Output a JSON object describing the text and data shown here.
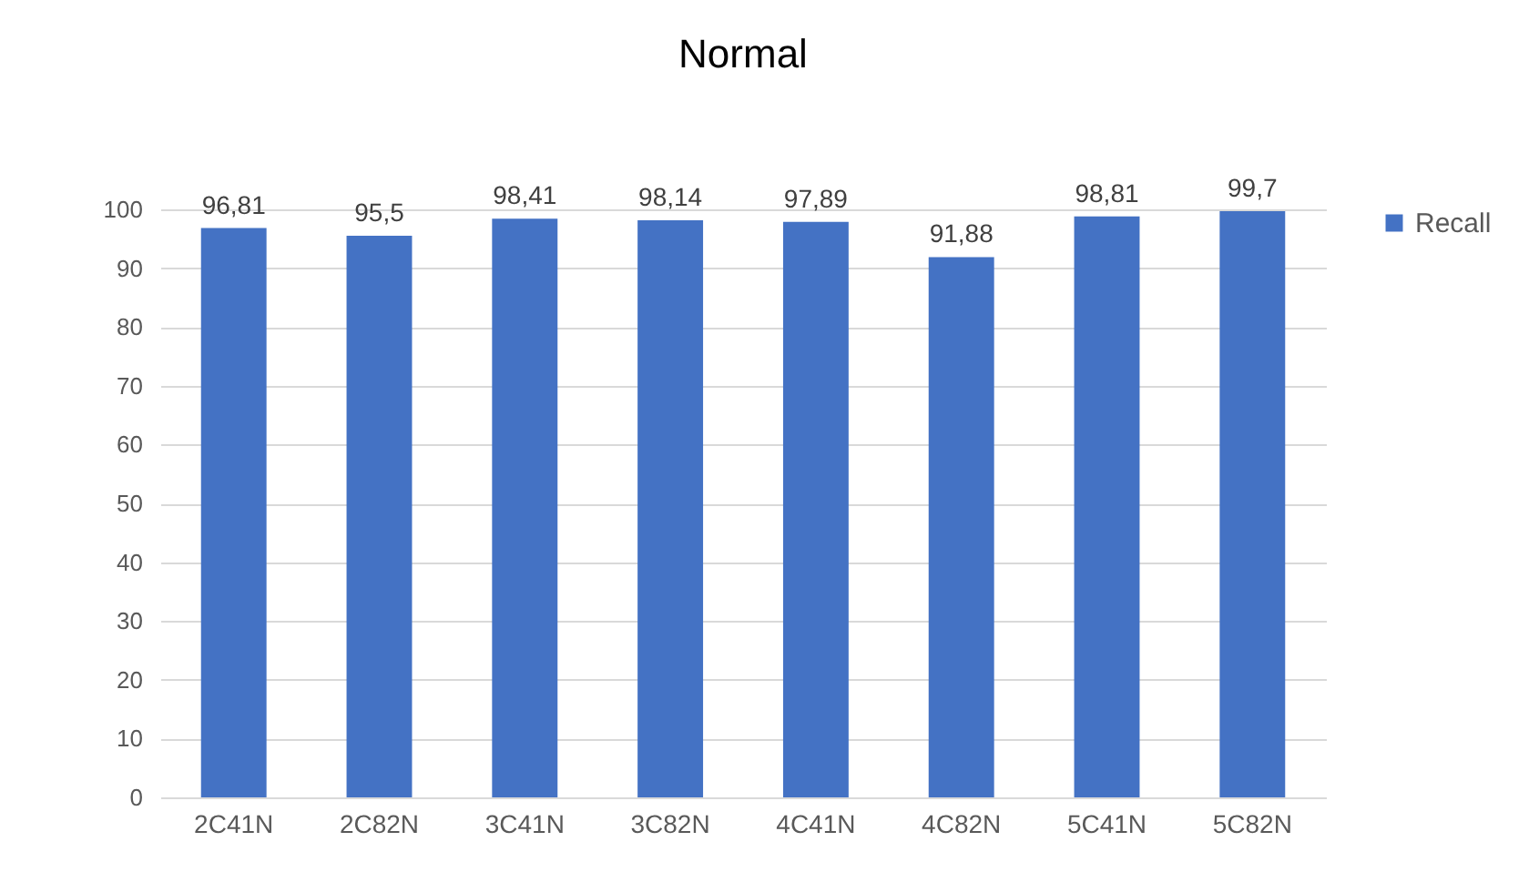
{
  "chart_data": {
    "type": "bar",
    "title": "Normal",
    "categories": [
      "2C41N",
      "2C82N",
      "3C41N",
      "3C82N",
      "4C41N",
      "4C82N",
      "5C41N",
      "5C82N"
    ],
    "series": [
      {
        "name": "Recall",
        "color": "#4472c4",
        "values": [
          96.81,
          95.5,
          98.41,
          98.14,
          97.89,
          91.88,
          98.81,
          99.7
        ],
        "value_labels": [
          "96,81",
          "95,5",
          "98,41",
          "98,14",
          "97,89",
          "91,88",
          "98,81",
          "99,7"
        ]
      }
    ],
    "ylim": [
      0,
      100
    ],
    "yticks": [
      0,
      10,
      20,
      30,
      40,
      50,
      60,
      70,
      80,
      90,
      100
    ],
    "grid": "y",
    "legend": "right"
  }
}
